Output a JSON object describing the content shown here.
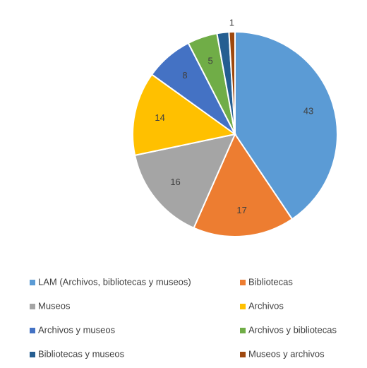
{
  "chart_data": {
    "type": "pie",
    "categories": [
      "LAM (Archivos, bibliotecas y museos)",
      "Bibliotecas",
      "Museos",
      "Archivos",
      "Archivos y museos",
      "Archivos y bibliotecas",
      "Bibliotecas y museos",
      "Museos y archivos"
    ],
    "values": [
      43,
      17,
      16,
      14,
      8,
      5,
      2,
      1
    ],
    "value_labels": [
      "43",
      "17",
      "16",
      "14",
      "8",
      "5",
      null,
      "1"
    ],
    "colors": [
      "#5b9bd5",
      "#ed7d31",
      "#a5a5a5",
      "#ffc000",
      "#4472c4",
      "#70ad47",
      "#255e91",
      "#9e480e"
    ],
    "legend": "bottom"
  }
}
